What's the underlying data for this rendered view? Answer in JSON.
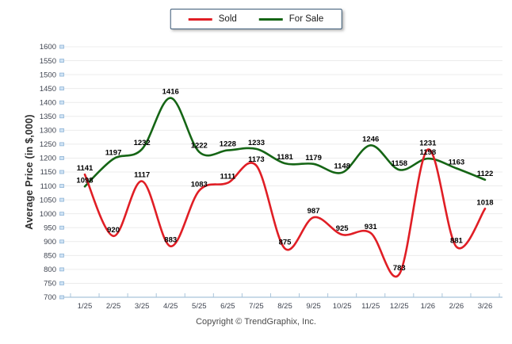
{
  "legend": {
    "sold_label": "Sold",
    "for_sale_label": "For Sale"
  },
  "footer": {
    "copyright": "Copyright © TrendGraphix, Inc."
  },
  "chart_data": {
    "type": "line",
    "title": "",
    "xlabel": "",
    "ylabel": "Average Price (in $,000)",
    "categories": [
      "1/25",
      "2/25",
      "3/25",
      "4/25",
      "5/25",
      "6/25",
      "7/25",
      "8/25",
      "9/25",
      "10/25",
      "11/25",
      "12/25",
      "1/26",
      "2/26",
      "3/26"
    ],
    "series": [
      {
        "name": "Sold",
        "color": "#e01e25",
        "values": [
          1141,
          920,
          1117,
          883,
          1083,
          1111,
          1173,
          875,
          987,
          925,
          931,
          783,
          1231,
          881,
          1018
        ]
      },
      {
        "name": "For Sale",
        "color": "#156515",
        "values": [
          1098,
          1197,
          1232,
          1416,
          1222,
          1228,
          1233,
          1181,
          1179,
          1148,
          1246,
          1158,
          1198,
          1163,
          1122
        ]
      }
    ],
    "ylim": [
      700,
      1600
    ],
    "ytick_step": 50,
    "grid": true,
    "show_data_labels": true,
    "legend_position": "top-center",
    "colors": {
      "gridline": "#ececec",
      "axis_line": "#a9c4da",
      "tick_marker_fill": "#cfe3f5",
      "tick_marker_border": "#8fb4d6",
      "tick_label": "#3f4450",
      "data_label": "#000000"
    }
  }
}
